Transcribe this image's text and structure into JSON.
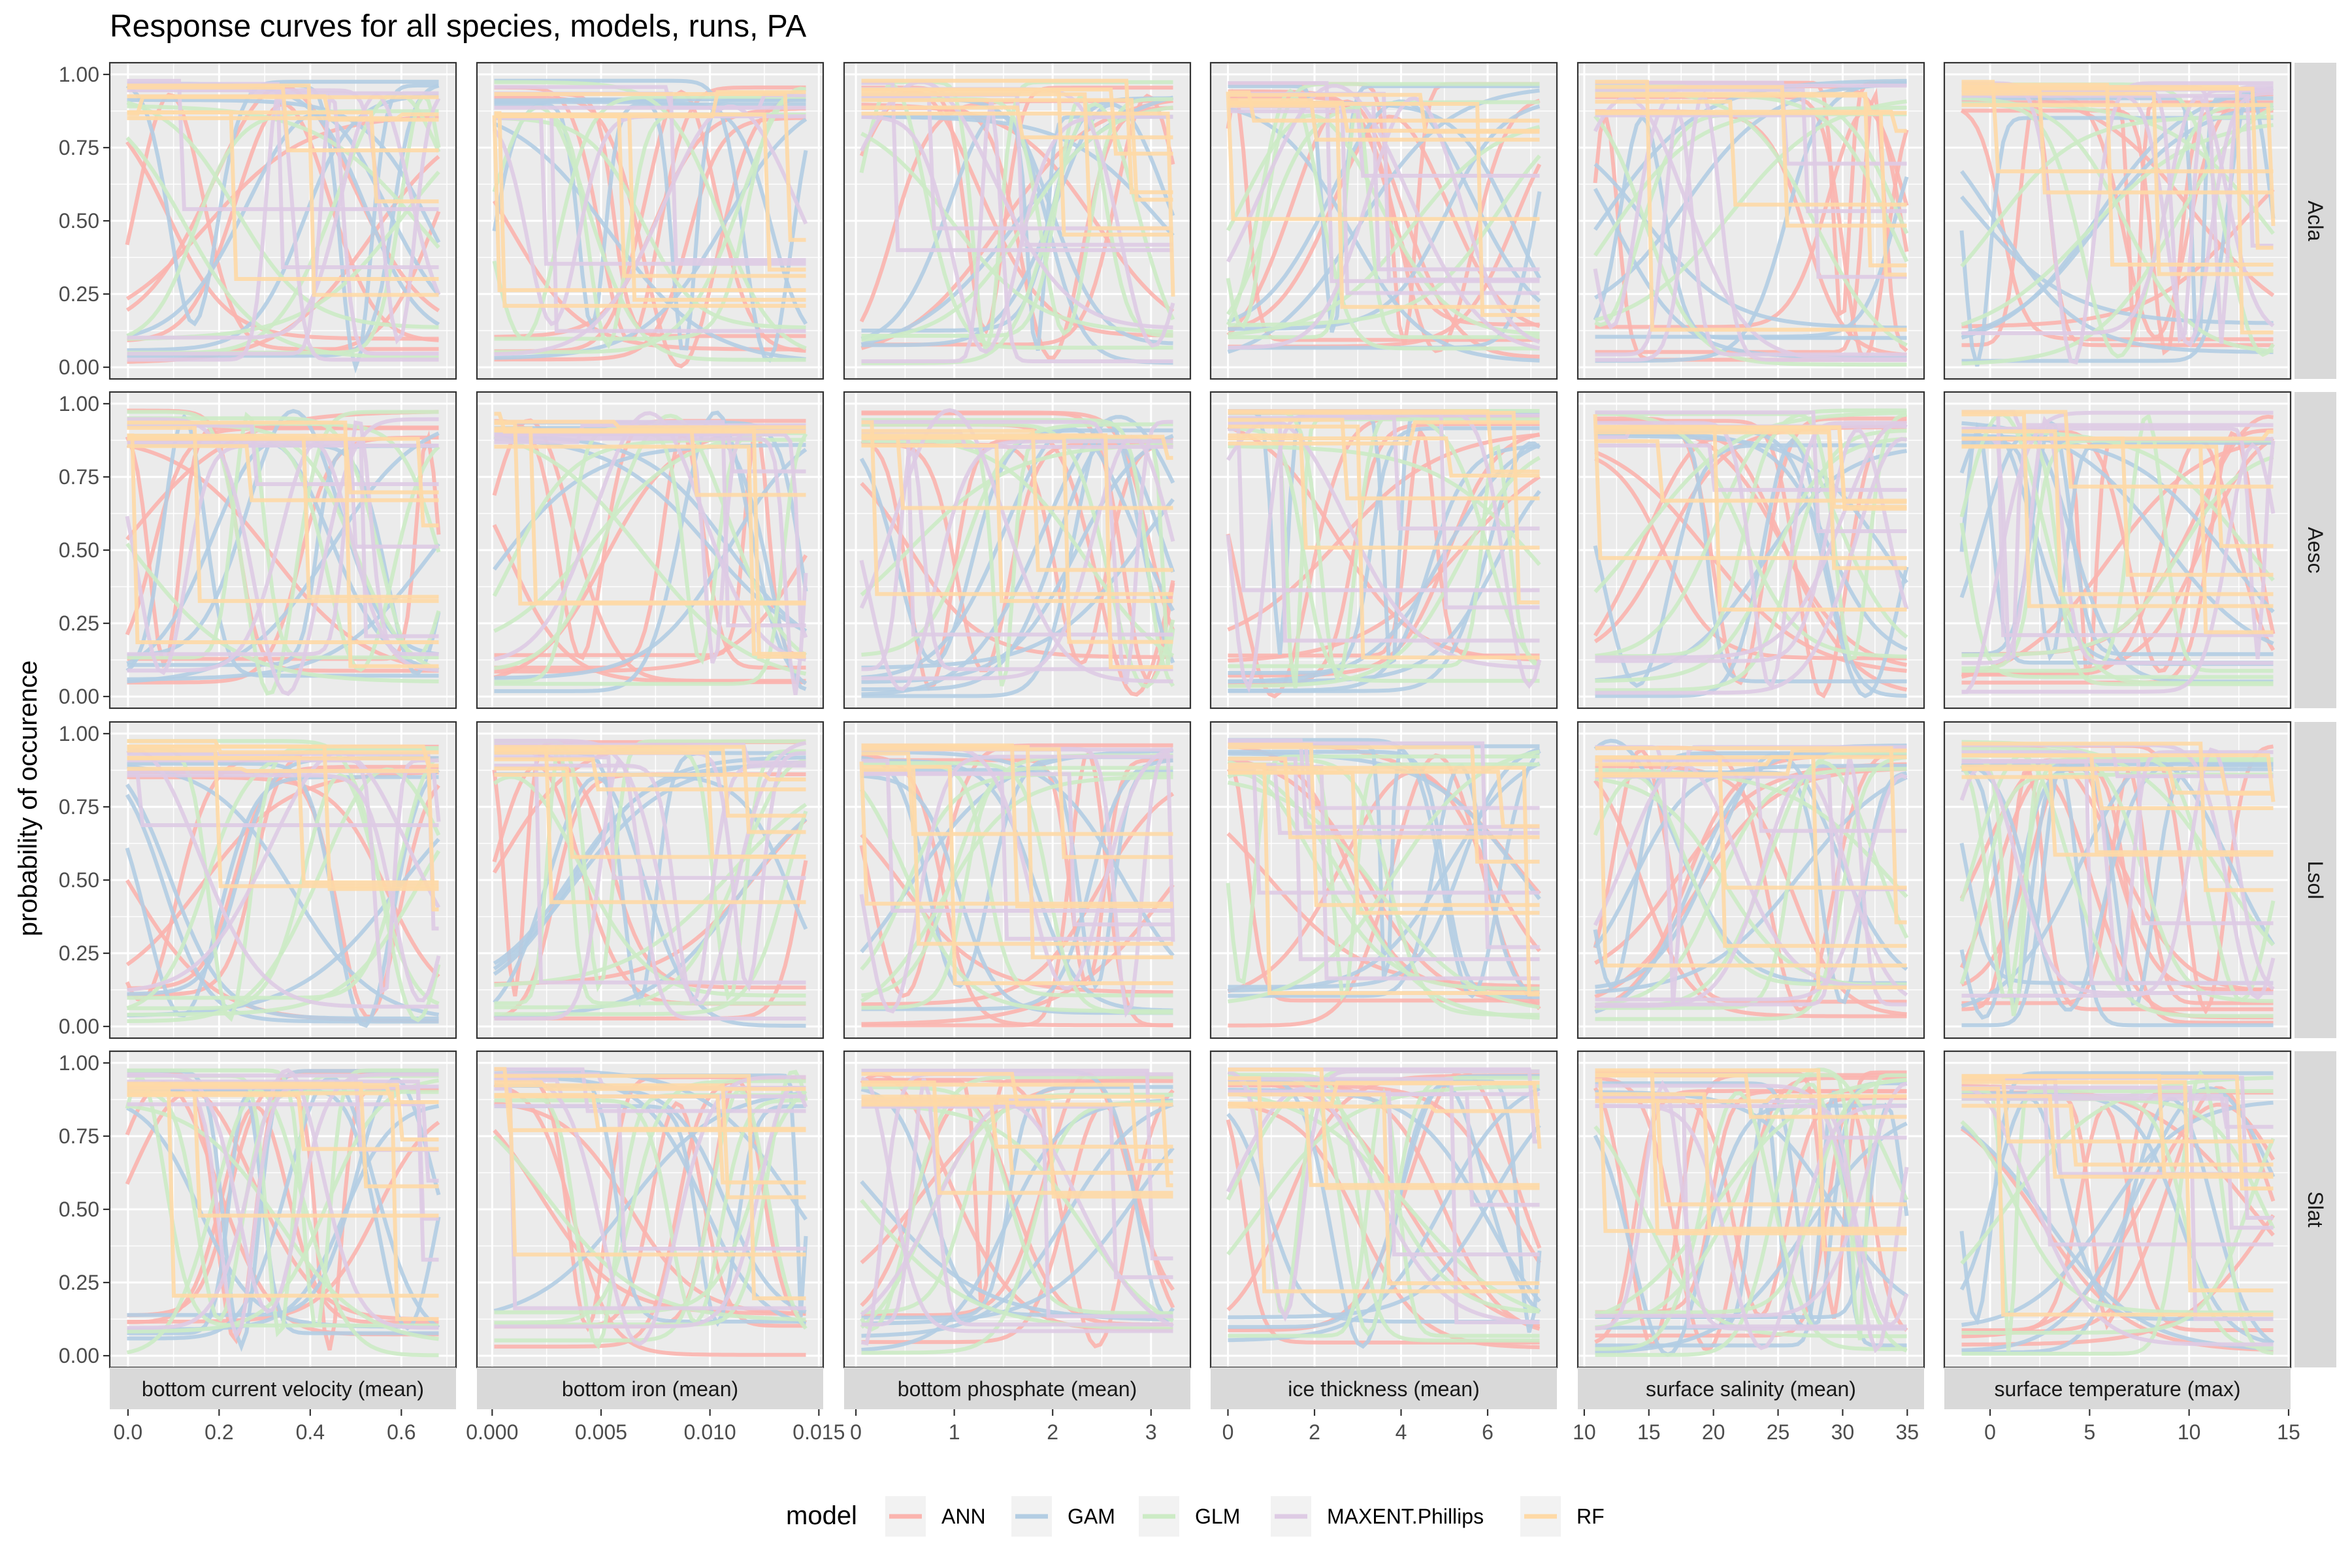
{
  "title": "Response curves for all species, models, runs, PA",
  "ylabel": "probability of occurence",
  "legend": {
    "title": "model",
    "items": [
      {
        "label": "ANN",
        "color": "#fbb4ae"
      },
      {
        "label": "GAM",
        "color": "#b3cde3"
      },
      {
        "label": "GLM",
        "color": "#ccebc5"
      },
      {
        "label": "MAXENT.Phillips",
        "color": "#decbe4"
      },
      {
        "label": "RF",
        "color": "#fed9a6"
      }
    ]
  },
  "chart_data": {
    "type": "line",
    "facet_rows": [
      "Acla",
      "Aesc",
      "Lsol",
      "Slat"
    ],
    "facet_cols": [
      {
        "label": "bottom current velocity (mean)",
        "xlim": [
          -0.04,
          0.72
        ],
        "ticks": [
          0.0,
          0.2,
          0.4,
          0.6
        ],
        "tick_labels": [
          "0.0",
          "0.2",
          "0.4",
          "0.6"
        ]
      },
      {
        "label": "bottom iron (mean)",
        "xlim": [
          -0.0007,
          0.0152
        ],
        "ticks": [
          0.0,
          0.005,
          0.01,
          0.015
        ],
        "tick_labels": [
          "0.000",
          "0.005",
          "0.010",
          "0.015"
        ]
      },
      {
        "label": "bottom phosphate (mean)",
        "xlim": [
          -0.12,
          3.4
        ],
        "ticks": [
          0,
          1,
          2,
          3
        ],
        "tick_labels": [
          "0",
          "1",
          "2",
          "3"
        ]
      },
      {
        "label": "ice thickness (mean)",
        "xlim": [
          -0.4,
          7.6
        ],
        "ticks": [
          0,
          2,
          4,
          6
        ],
        "tick_labels": [
          "0",
          "2",
          "4",
          "6"
        ]
      },
      {
        "label": "surface salinity (mean)",
        "xlim": [
          9.5,
          36.3
        ],
        "ticks": [
          10,
          15,
          20,
          25,
          30,
          35
        ],
        "tick_labels": [
          "10",
          "15",
          "20",
          "25",
          "30",
          "35"
        ]
      },
      {
        "label": "surface temperature (max)",
        "xlim": [
          -2.3,
          15.1
        ],
        "ticks": [
          0,
          5,
          10,
          15
        ],
        "tick_labels": [
          "0",
          "5",
          "10",
          "15"
        ]
      }
    ],
    "ylim": [
      -0.04,
      1.04
    ],
    "yticks": [
      0.0,
      0.25,
      0.5,
      0.75,
      1.0
    ],
    "ytick_labels": [
      "0.00",
      "0.25",
      "0.50",
      "0.75",
      "1.00"
    ],
    "series": [
      {
        "name": "ANN",
        "color": "#fbb4ae"
      },
      {
        "name": "GAM",
        "color": "#b3cde3"
      },
      {
        "name": "GLM",
        "color": "#ccebc5"
      },
      {
        "name": "MAXENT.Phillips",
        "color": "#decbe4"
      },
      {
        "name": "RF",
        "color": "#fed9a6"
      }
    ],
    "panel_background": "#ebebeb",
    "strip_background": "#d9d9d9",
    "grid": true,
    "legend_position": "bottom"
  }
}
